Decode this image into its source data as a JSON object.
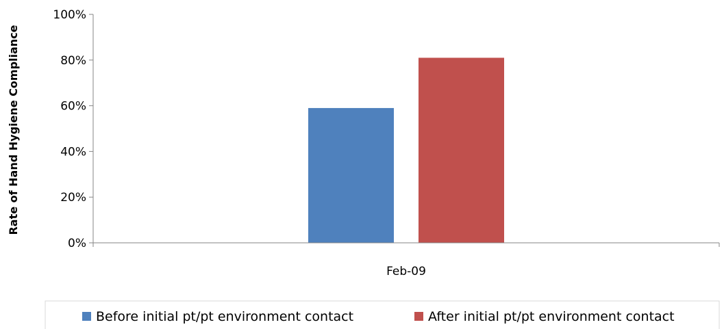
{
  "chart_data": {
    "type": "bar",
    "categories": [
      "Feb-09"
    ],
    "series": [
      {
        "name": "Before initial pt/pt environment contact",
        "values": [
          0.59
        ],
        "color": "#4f81bd"
      },
      {
        "name": "After initial pt/pt environment contact",
        "values": [
          0.81
        ],
        "color": "#c0504d"
      }
    ],
    "title": "",
    "xlabel": "",
    "ylabel": "Rate of Hand Hygiene Compliance",
    "ylim": [
      0,
      1
    ],
    "yticks": [
      "0%",
      "20%",
      "40%",
      "60%",
      "80%",
      "100%"
    ],
    "grid": false,
    "legend": "bottom"
  }
}
